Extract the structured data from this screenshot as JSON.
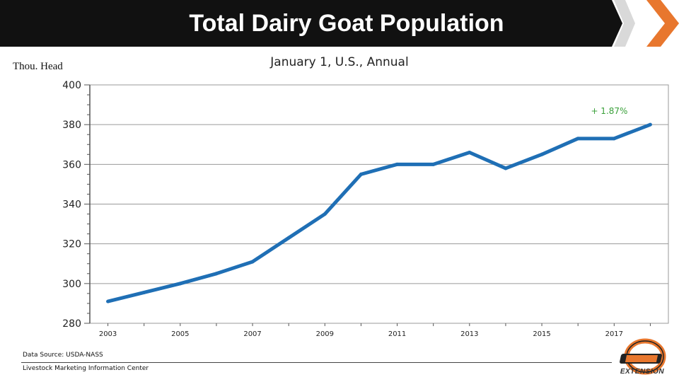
{
  "slide": {
    "title": "Total Dairy Goat Population",
    "subtitle": "January 1, U.S., Annual",
    "y_unit_label": "Thou. Head",
    "source": "Data Source: USDA-NASS",
    "organization": "Livestock Marketing Information Center",
    "logo_text": "EXTENSION",
    "colors": {
      "banner": "#111111",
      "accent_orange": "#e8772e",
      "line": "#1f6fb5",
      "annotation": "#3aa03a"
    }
  },
  "chart_data": {
    "type": "line",
    "title": "Total Dairy Goat Population",
    "subtitle": "January 1, U.S., Annual",
    "ylabel": "Thou. Head",
    "xlabel": "",
    "x": [
      2003,
      2004,
      2005,
      2006,
      2007,
      2008,
      2009,
      2010,
      2011,
      2012,
      2013,
      2014,
      2015,
      2016,
      2017,
      2018
    ],
    "x_tick_labels": [
      "2003",
      "2005",
      "2007",
      "2009",
      "2011",
      "2013",
      "2015",
      "2017"
    ],
    "series": [
      {
        "values": [
          291,
          295.5,
          300,
          305,
          311,
          323,
          335,
          355,
          360,
          360,
          366,
          358,
          365,
          373,
          373,
          380
        ]
      }
    ],
    "ylim": [
      280,
      400
    ],
    "y_ticks": [
      280,
      300,
      320,
      340,
      360,
      380,
      400
    ],
    "grid": true,
    "annotation": "+ 1.87%"
  }
}
